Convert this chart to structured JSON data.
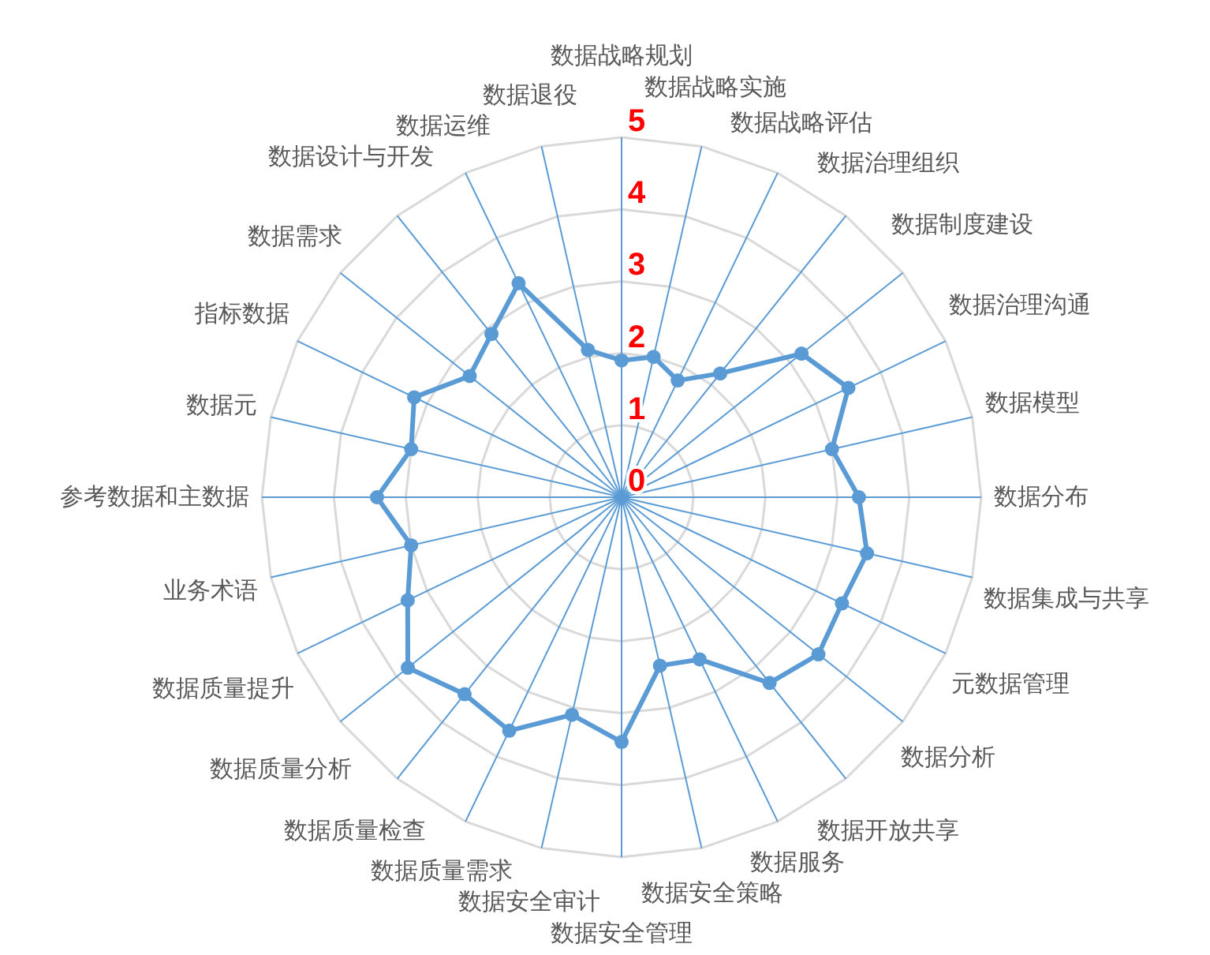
{
  "chart_data": {
    "type": "radar",
    "categories": [
      "数据战略规划",
      "数据战略实施",
      "数据战略评估",
      "数据治理组织",
      "数据制度建设",
      "数据治理沟通",
      "数据模型",
      "数据分布",
      "数据集成与共享",
      "元数据管理",
      "数据分析",
      "数据开放共享",
      "数据服务",
      "数据安全策略",
      "数据安全管理",
      "数据安全审计",
      "数据质量需求",
      "数据质量检查",
      "数据质量分析",
      "数据质量提升",
      "业务术语",
      "参考数据和主数据",
      "数据元",
      "指标数据",
      "数据需求",
      "数据设计与开发",
      "数据运维",
      "数据退役"
    ],
    "series": [
      {
        "color": "#5b9bd5",
        "values": [
          1.9,
          2.0,
          1.8,
          2.2,
          3.2,
          3.5,
          3.0,
          3.3,
          3.5,
          3.4,
          3.5,
          3.3,
          2.5,
          2.4,
          3.4,
          3.1,
          3.6,
          3.5,
          3.8,
          3.3,
          3.0,
          3.4,
          3.0,
          3.2,
          2.7,
          2.9,
          3.3,
          2.1
        ]
      }
    ],
    "ylim": [
      0,
      5
    ],
    "yticks": [
      0,
      1,
      2,
      3,
      4,
      5
    ],
    "grid": true,
    "marker": "circle",
    "line_style": "solid"
  }
}
